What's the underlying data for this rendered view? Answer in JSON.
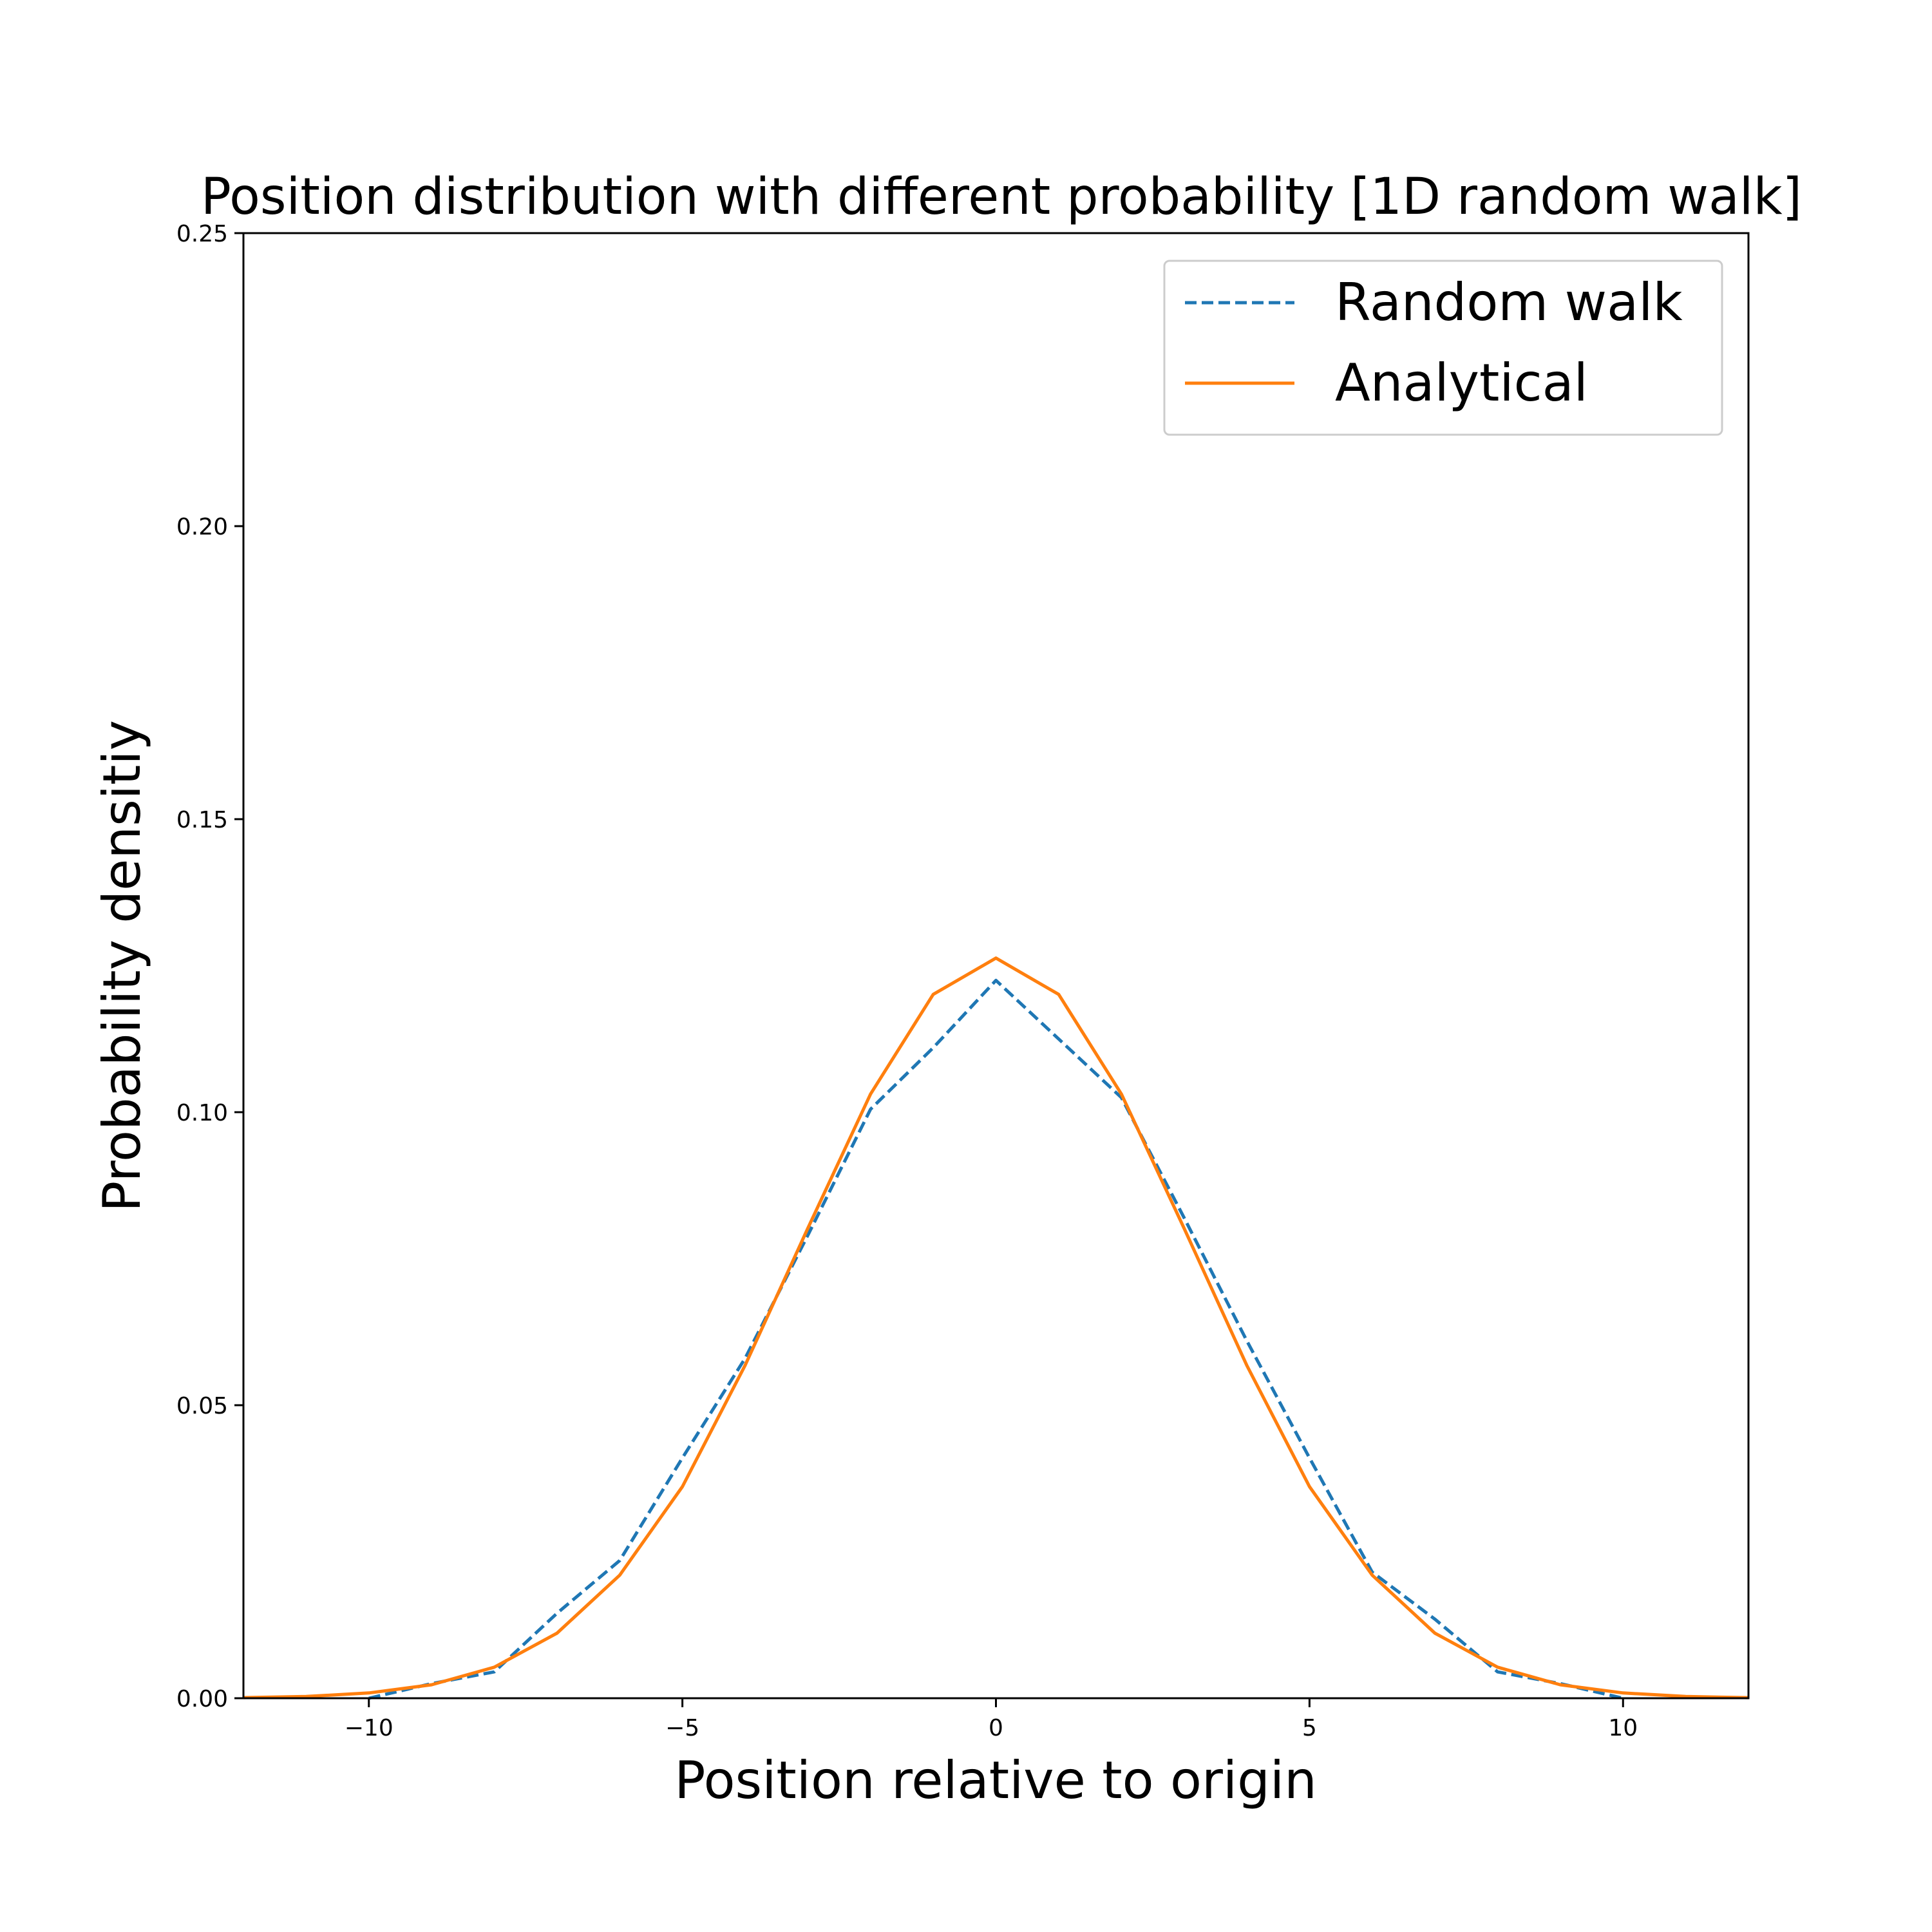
{
  "chart_data": {
    "type": "line",
    "title": "Position distribution with different probability [1D random walk]",
    "xlabel": "Position relative to origin",
    "ylabel": "Probability densitiy",
    "xlim": [
      -12,
      12
    ],
    "ylim": [
      0,
      0.25
    ],
    "xticks": [
      -10,
      -5,
      0,
      5,
      10
    ],
    "xtick_labels": [
      "−10",
      "−5",
      "0",
      "5",
      "10"
    ],
    "yticks": [
      0.0,
      0.05,
      0.1,
      0.15,
      0.2,
      0.25
    ],
    "ytick_labels": [
      "0.00",
      "0.05",
      "0.10",
      "0.15",
      "0.20",
      "0.25"
    ],
    "grid": false,
    "legend_position": "top-right",
    "series": [
      {
        "name": "Random walk",
        "style": "dashed",
        "color": "#1f77b4",
        "x": [
          -10,
          -9,
          -8,
          -7,
          -6,
          -5,
          -4,
          -3,
          -2,
          -1,
          0,
          1,
          2,
          3,
          4,
          5,
          6,
          7,
          8,
          9,
          10
        ],
        "y": [
          0.0,
          0.0025,
          0.0045,
          0.0145,
          0.0235,
          0.041,
          0.058,
          0.079,
          0.1005,
          0.111,
          0.1225,
          0.1125,
          0.1025,
          0.082,
          0.061,
          0.041,
          0.0215,
          0.0135,
          0.0045,
          0.0025,
          0.0
        ]
      },
      {
        "name": "Analytical",
        "style": "solid",
        "color": "#ff7f0e",
        "x": [
          -12,
          -11,
          -10,
          -9,
          -8,
          -7,
          -6,
          -5,
          -4,
          -3,
          -2,
          -1,
          0,
          1,
          2,
          3,
          4,
          5,
          6,
          7,
          8,
          9,
          10,
          11,
          12
        ],
        "y": [
          0.0001,
          0.0003,
          0.0009,
          0.0023,
          0.0053,
          0.0111,
          0.021,
          0.0361,
          0.0568,
          0.0802,
          0.1031,
          0.1201,
          0.1263,
          0.1201,
          0.1031,
          0.0802,
          0.0568,
          0.0361,
          0.021,
          0.0111,
          0.0053,
          0.0023,
          0.0009,
          0.0003,
          0.0001
        ]
      }
    ]
  }
}
